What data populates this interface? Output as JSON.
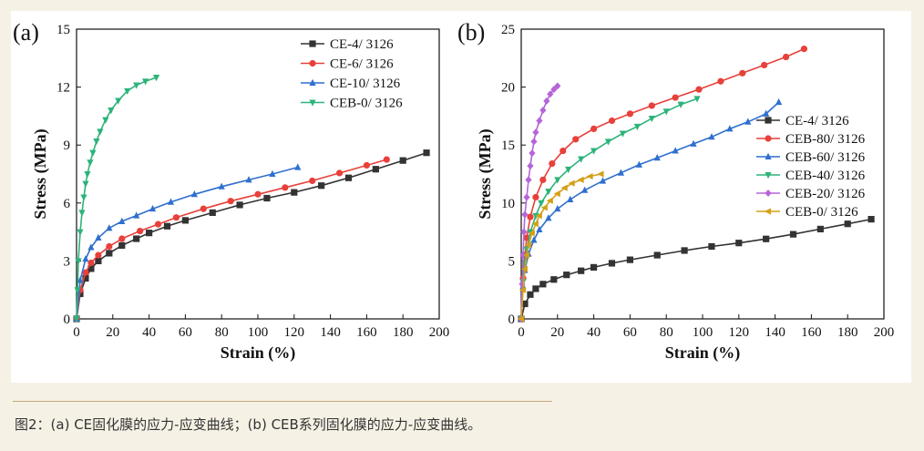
{
  "caption": "图2：(a) CE固化膜的应力-应变曲线；(b) CEB系列固化膜的应力-应变曲线。",
  "chart_data": [
    {
      "type": "line",
      "panel_label": "(a)",
      "xlabel": "Strain (%)",
      "ylabel": "Stress (MPa)",
      "xlim": [
        0,
        200
      ],
      "ylim": [
        0,
        15
      ],
      "xticks": [
        0,
        20,
        40,
        60,
        80,
        100,
        120,
        140,
        160,
        180,
        200
      ],
      "yticks": [
        0,
        3,
        6,
        9,
        12,
        15
      ],
      "legend_position": "top-right",
      "series": [
        {
          "name": "CE-4/ 3126",
          "color": "#333333",
          "marker": "square",
          "points": [
            [
              0,
              0
            ],
            [
              2,
              1.3
            ],
            [
              5,
              2.1
            ],
            [
              8,
              2.6
            ],
            [
              12,
              3.0
            ],
            [
              18,
              3.4
            ],
            [
              25,
              3.8
            ],
            [
              33,
              4.15
            ],
            [
              40,
              4.45
            ],
            [
              50,
              4.8
            ],
            [
              60,
              5.1
            ],
            [
              75,
              5.5
            ],
            [
              90,
              5.9
            ],
            [
              105,
              6.25
            ],
            [
              120,
              6.55
            ],
            [
              135,
              6.9
            ],
            [
              150,
              7.3
            ],
            [
              165,
              7.75
            ],
            [
              180,
              8.2
            ],
            [
              193,
              8.6
            ]
          ]
        },
        {
          "name": "CE-6/ 3126",
          "color": "#e8403a",
          "marker": "circle",
          "points": [
            [
              0,
              0
            ],
            [
              2,
              1.5
            ],
            [
              5,
              2.4
            ],
            [
              8,
              2.9
            ],
            [
              12,
              3.3
            ],
            [
              18,
              3.75
            ],
            [
              25,
              4.15
            ],
            [
              35,
              4.55
            ],
            [
              45,
              4.9
            ],
            [
              55,
              5.25
            ],
            [
              70,
              5.7
            ],
            [
              85,
              6.1
            ],
            [
              100,
              6.45
            ],
            [
              115,
              6.8
            ],
            [
              130,
              7.15
            ],
            [
              145,
              7.55
            ],
            [
              160,
              7.95
            ],
            [
              171,
              8.25
            ]
          ]
        },
        {
          "name": "CE-10/ 3126",
          "color": "#2f6fcf",
          "marker": "triangle",
          "points": [
            [
              0,
              0
            ],
            [
              2,
              2.0
            ],
            [
              5,
              3.1
            ],
            [
              8,
              3.7
            ],
            [
              12,
              4.2
            ],
            [
              18,
              4.7
            ],
            [
              25,
              5.05
            ],
            [
              33,
              5.35
            ],
            [
              42,
              5.7
            ],
            [
              52,
              6.05
            ],
            [
              65,
              6.45
            ],
            [
              80,
              6.85
            ],
            [
              95,
              7.2
            ],
            [
              108,
              7.5
            ],
            [
              122,
              7.85
            ]
          ]
        },
        {
          "name": "CEB-0/ 3126",
          "color": "#2db37a",
          "marker": "triangle-down",
          "points": [
            [
              0,
              0
            ],
            [
              0.5,
              1.5
            ],
            [
              1,
              3.0
            ],
            [
              2,
              4.5
            ],
            [
              3,
              5.5
            ],
            [
              4,
              6.3
            ],
            [
              5,
              7.0
            ],
            [
              6,
              7.5
            ],
            [
              7.5,
              8.1
            ],
            [
              9,
              8.6
            ],
            [
              11,
              9.2
            ],
            [
              13,
              9.7
            ],
            [
              16,
              10.3
            ],
            [
              19,
              10.8
            ],
            [
              23,
              11.3
            ],
            [
              28,
              11.8
            ],
            [
              33,
              12.1
            ],
            [
              38,
              12.3
            ],
            [
              44,
              12.5
            ]
          ]
        }
      ]
    },
    {
      "type": "line",
      "panel_label": "(b)",
      "xlabel": "Strain (%)",
      "ylabel": "Stress (MPa)",
      "xlim": [
        0,
        200
      ],
      "ylim": [
        0,
        25
      ],
      "xticks": [
        0,
        20,
        40,
        60,
        80,
        100,
        120,
        140,
        160,
        180,
        200
      ],
      "yticks": [
        0,
        5,
        10,
        15,
        20,
        25
      ],
      "legend_position": "right",
      "series": [
        {
          "name": "CE-4/ 3126",
          "color": "#333333",
          "marker": "square",
          "points": [
            [
              0,
              0
            ],
            [
              2,
              1.3
            ],
            [
              5,
              2.1
            ],
            [
              8,
              2.6
            ],
            [
              12,
              3.0
            ],
            [
              18,
              3.4
            ],
            [
              25,
              3.8
            ],
            [
              33,
              4.15
            ],
            [
              40,
              4.45
            ],
            [
              50,
              4.8
            ],
            [
              60,
              5.1
            ],
            [
              75,
              5.5
            ],
            [
              90,
              5.9
            ],
            [
              105,
              6.25
            ],
            [
              120,
              6.55
            ],
            [
              135,
              6.9
            ],
            [
              150,
              7.3
            ],
            [
              165,
              7.75
            ],
            [
              180,
              8.2
            ],
            [
              193,
              8.6
            ]
          ]
        },
        {
          "name": "CEB-80/ 3126",
          "color": "#e8403a",
          "marker": "circle",
          "points": [
            [
              0,
              0
            ],
            [
              1,
              3.5
            ],
            [
              2,
              5.5
            ],
            [
              3,
              7.0
            ],
            [
              5,
              8.8
            ],
            [
              8,
              10.5
            ],
            [
              12,
              12.0
            ],
            [
              17,
              13.4
            ],
            [
              23,
              14.5
            ],
            [
              30,
              15.5
            ],
            [
              40,
              16.4
            ],
            [
              50,
              17.1
            ],
            [
              60,
              17.7
            ],
            [
              72,
              18.4
            ],
            [
              85,
              19.1
            ],
            [
              98,
              19.8
            ],
            [
              110,
              20.5
            ],
            [
              122,
              21.2
            ],
            [
              134,
              21.9
            ],
            [
              146,
              22.6
            ],
            [
              156,
              23.3
            ]
          ]
        },
        {
          "name": "CEB-60/ 3126",
          "color": "#2f6fcf",
          "marker": "triangle",
          "points": [
            [
              0,
              0
            ],
            [
              1,
              2.8
            ],
            [
              2,
              4.2
            ],
            [
              4,
              5.6
            ],
            [
              7,
              6.8
            ],
            [
              10,
              7.7
            ],
            [
              15,
              8.7
            ],
            [
              20,
              9.5
            ],
            [
              27,
              10.3
            ],
            [
              35,
              11.1
            ],
            [
              45,
              11.9
            ],
            [
              55,
              12.6
            ],
            [
              65,
              13.3
            ],
            [
              75,
              13.9
            ],
            [
              85,
              14.5
            ],
            [
              95,
              15.1
            ],
            [
              105,
              15.7
            ],
            [
              115,
              16.4
            ],
            [
              125,
              17.0
            ],
            [
              135,
              17.7
            ],
            [
              142,
              18.7
            ]
          ]
        },
        {
          "name": "CEB-40/ 3126",
          "color": "#2db37a",
          "marker": "triangle-down",
          "points": [
            [
              0,
              0
            ],
            [
              1,
              3.2
            ],
            [
              2,
              4.8
            ],
            [
              3,
              6.0
            ],
            [
              5,
              7.5
            ],
            [
              8,
              8.9
            ],
            [
              11,
              10.0
            ],
            [
              15,
              11.0
            ],
            [
              20,
              12.0
            ],
            [
              26,
              12.9
            ],
            [
              33,
              13.8
            ],
            [
              40,
              14.5
            ],
            [
              48,
              15.3
            ],
            [
              56,
              16.0
            ],
            [
              64,
              16.6
            ],
            [
              72,
              17.3
            ],
            [
              80,
              17.9
            ],
            [
              88,
              18.5
            ],
            [
              97,
              19.0
            ]
          ]
        },
        {
          "name": "CEB-20/ 3126",
          "color": "#b565d9",
          "marker": "diamond",
          "points": [
            [
              0,
              0
            ],
            [
              0.5,
              3.0
            ],
            [
              1,
              5.5
            ],
            [
              1.5,
              7.5
            ],
            [
              2,
              9.0
            ],
            [
              3,
              10.5
            ],
            [
              4,
              12.0
            ],
            [
              5,
              13.2
            ],
            [
              6,
              14.3
            ],
            [
              7,
              15.3
            ],
            [
              8,
              16.1
            ],
            [
              10,
              17.1
            ],
            [
              12,
              18.0
            ],
            [
              14,
              18.8
            ],
            [
              16,
              19.4
            ],
            [
              18,
              19.8
            ],
            [
              20,
              20.1
            ]
          ]
        },
        {
          "name": "CEB-0/ 3126",
          "color": "#d4a017",
          "marker": "triangle-left",
          "points": [
            [
              0,
              0
            ],
            [
              1,
              2.5
            ],
            [
              2,
              4.3
            ],
            [
              3,
              5.5
            ],
            [
              4,
              6.4
            ],
            [
              6,
              7.4
            ],
            [
              8,
              8.2
            ],
            [
              10,
              8.9
            ],
            [
              13,
              9.6
            ],
            [
              16,
              10.2
            ],
            [
              20,
              10.8
            ],
            [
              24,
              11.3
            ],
            [
              28,
              11.7
            ],
            [
              33,
              12.0
            ],
            [
              38,
              12.3
            ],
            [
              44,
              12.5
            ]
          ]
        }
      ]
    }
  ]
}
